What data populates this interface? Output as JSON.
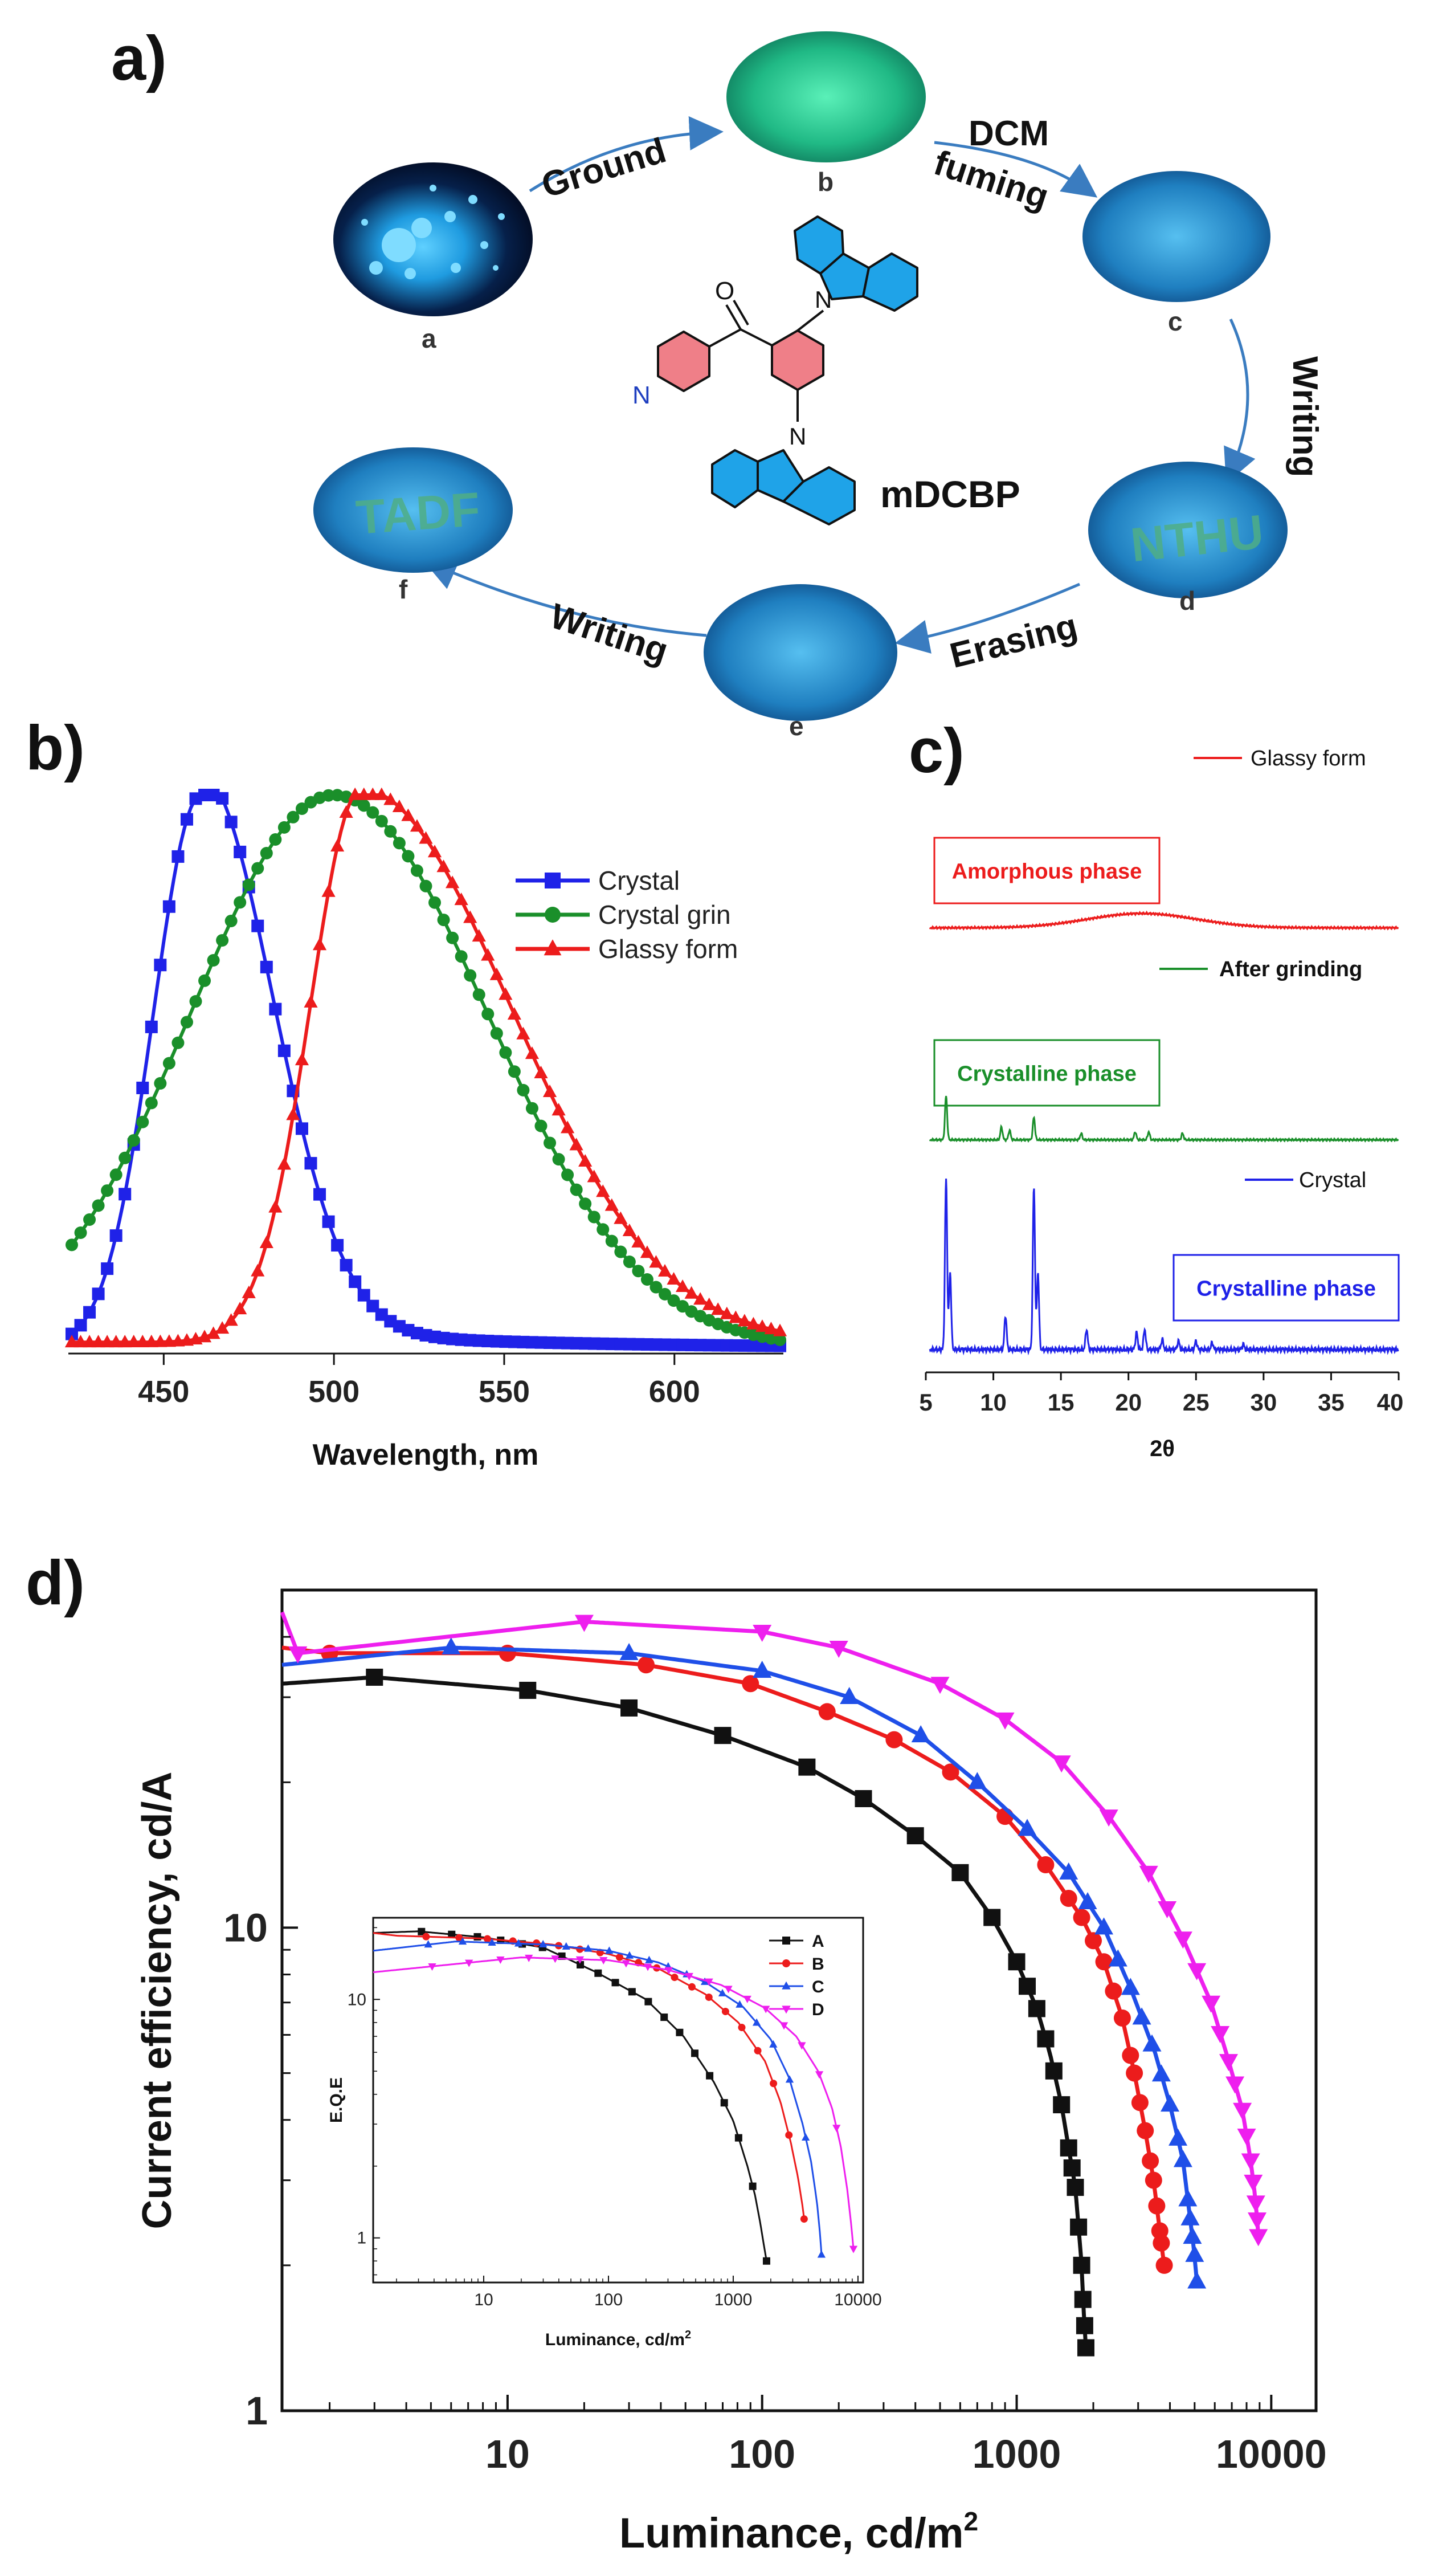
{
  "panel_labels": {
    "a": "a)",
    "b": "b)",
    "c": "c)",
    "d": "d)"
  },
  "panel_a": {
    "compound_name": "mDCBP",
    "samples": [
      {
        "letter": "a",
        "state": "crystal",
        "color": "#27a8e6"
      },
      {
        "letter": "b",
        "state": "ground",
        "color": "#33d39a"
      },
      {
        "letter": "c",
        "state": "fumed",
        "color": "#1b7fb7"
      },
      {
        "letter": "d",
        "state": "written",
        "color": "#2a88c0",
        "writing": "NTHU"
      },
      {
        "letter": "e",
        "state": "erased",
        "color": "#2a88c0"
      },
      {
        "letter": "f",
        "state": "rewritten",
        "color": "#2a88c0",
        "writing": "TADF"
      }
    ],
    "steps": {
      "ground": "Ground",
      "dcm": "DCM",
      "fuming": "fuming",
      "writing_right": "Writing",
      "erasing": "Erasing",
      "writing_left": "Writing"
    },
    "colors": {
      "arrow": "#3a7cc0",
      "carbazole": "#1fa3e8",
      "phenyl": "#ef7f88",
      "pyridine": "#ef7f88"
    }
  },
  "chart_data": [
    {
      "id": "b",
      "type": "line",
      "xlabel": "Wavelength, nm",
      "ylabel": "",
      "xlim": [
        422,
        632
      ],
      "ylim": [
        0,
        1.0
      ],
      "xticks": [
        450,
        500,
        550,
        600
      ],
      "xtick_labels": [
        "450",
        "500",
        "550",
        "600"
      ],
      "legend_position": "top-right",
      "series": [
        {
          "name": "Crystal",
          "color": "#1f22e8",
          "marker": "square",
          "peak": 461,
          "sigma_left": 14,
          "sigma_right": 21,
          "tail_amp": 0.04,
          "tail_width": 70
        },
        {
          "name": "Crystal grin",
          "color": "#1a8f2a",
          "marker": "circle",
          "peak": 500,
          "sigma_left": 42,
          "sigma_right": 45
        },
        {
          "name": "Glassy form",
          "color": "#ec1c1c",
          "marker": "triangle",
          "peak": 508,
          "sigma_left": 15,
          "sigma_right": 44,
          "baseline": 0.01
        }
      ]
    },
    {
      "id": "c",
      "type": "line",
      "xlabel": "2θ",
      "xlim": [
        5,
        40
      ],
      "xticks": [
        5,
        10,
        15,
        20,
        25,
        30,
        35,
        40
      ],
      "xtick_labels": [
        "5",
        "10",
        "15",
        "20",
        "25",
        "30",
        "35",
        "40"
      ],
      "series": [
        {
          "name": "Glassy form",
          "phase_label": "Amorphous phase",
          "color": "#ec1c1c",
          "hump_center": 21,
          "hump_height": 0.18,
          "hump_width": 4,
          "peaks": []
        },
        {
          "name": "After grinding",
          "phase_label": "Crystalline phase",
          "color": "#1a8f2a",
          "peaks": [
            [
              6.5,
              0.55
            ],
            [
              10.6,
              0.16
            ],
            [
              11.2,
              0.12
            ],
            [
              13.0,
              0.28
            ],
            [
              16.5,
              0.08
            ],
            [
              20.5,
              0.1
            ],
            [
              21.5,
              0.1
            ],
            [
              24.0,
              0.08
            ]
          ]
        },
        {
          "name": "Crystal",
          "phase_label": "Crystalline phase",
          "color": "#1f22e8",
          "peaks": [
            [
              6.5,
              1.0
            ],
            [
              6.8,
              0.45
            ],
            [
              10.9,
              0.2
            ],
            [
              13.0,
              0.95
            ],
            [
              13.3,
              0.45
            ],
            [
              16.9,
              0.12
            ],
            [
              20.6,
              0.1
            ],
            [
              21.2,
              0.12
            ],
            [
              22.5,
              0.06
            ],
            [
              23.7,
              0.05
            ],
            [
              25.0,
              0.05
            ],
            [
              26.2,
              0.04
            ],
            [
              28.5,
              0.03
            ]
          ]
        }
      ]
    },
    {
      "id": "d",
      "type": "line",
      "xlabel": "Luminance, cd/m",
      "xlabel_sup": "2",
      "ylabel": "Current efficiency, cd/A",
      "xscale": "log",
      "yscale": "log",
      "xlim": [
        1.3,
        15000
      ],
      "ylim": [
        1,
        50
      ],
      "xticks": [
        10,
        100,
        1000,
        10000
      ],
      "xtick_labels": [
        "10",
        "100",
        "1000",
        "10000"
      ],
      "yticks": [
        1,
        10
      ],
      "ytick_labels": [
        "1",
        "10"
      ],
      "series": [
        {
          "name": "A",
          "color": "#111111",
          "marker": "square",
          "points": [
            [
              1.3,
              32
            ],
            [
              3,
              33
            ],
            [
              12,
              31
            ],
            [
              30,
              28.5
            ],
            [
              70,
              25
            ],
            [
              150,
              21.5
            ],
            [
              250,
              18.5
            ],
            [
              400,
              15.5
            ],
            [
              600,
              13
            ],
            [
              800,
              10.5
            ],
            [
              1000,
              8.5
            ],
            [
              1200,
              6.8
            ],
            [
              1350,
              5.5
            ],
            [
              1500,
              4.3
            ],
            [
              1600,
              3.5
            ],
            [
              1700,
              2.9
            ],
            [
              1750,
              2.4
            ],
            [
              1800,
              2.0
            ],
            [
              1820,
              1.7
            ],
            [
              1850,
              1.5
            ],
            [
              1870,
              1.35
            ]
          ],
          "marker_x": [
            3,
            12,
            30,
            70,
            150,
            250,
            400,
            600,
            800,
            1000,
            1100,
            1200,
            1300,
            1400,
            1500,
            1600,
            1650,
            1700,
            1750,
            1800,
            1820,
            1850,
            1870
          ]
        },
        {
          "name": "B",
          "color": "#ec1c1c",
          "marker": "circle",
          "points": [
            [
              1.3,
              38
            ],
            [
              2,
              37
            ],
            [
              10,
              37
            ],
            [
              35,
              35
            ],
            [
              90,
              32
            ],
            [
              180,
              28
            ],
            [
              330,
              24.5
            ],
            [
              550,
              21
            ],
            [
              900,
              17
            ],
            [
              1300,
              13.5
            ],
            [
              1800,
              10.5
            ],
            [
              2200,
              8.5
            ],
            [
              2600,
              6.5
            ],
            [
              2900,
              5
            ],
            [
              3200,
              3.8
            ],
            [
              3450,
              3
            ],
            [
              3600,
              2.5
            ],
            [
              3750,
              2.1
            ],
            [
              3800,
              2.0
            ]
          ],
          "marker_x": [
            2,
            10,
            35,
            90,
            180,
            330,
            550,
            900,
            1300,
            1600,
            1800,
            2000,
            2200,
            2400,
            2600,
            2800,
            2900,
            3050,
            3200,
            3350,
            3450,
            3550,
            3650,
            3700,
            3800
          ]
        },
        {
          "name": "C",
          "color": "#1f4fe8",
          "marker": "triangle",
          "points": [
            [
              1.3,
              35
            ],
            [
              6,
              38
            ],
            [
              30,
              37
            ],
            [
              100,
              34
            ],
            [
              220,
              30
            ],
            [
              420,
              25
            ],
            [
              700,
              20
            ],
            [
              1100,
              16
            ],
            [
              1600,
              13
            ],
            [
              2200,
              10
            ],
            [
              2800,
              7.5
            ],
            [
              3500,
              5.5
            ],
            [
              4000,
              4.3
            ],
            [
              4500,
              3.3
            ],
            [
              4800,
              2.5
            ],
            [
              5000,
              2.1
            ],
            [
              5100,
              1.85
            ]
          ],
          "marker_x": [
            6,
            30,
            100,
            220,
            420,
            700,
            1100,
            1600,
            1900,
            2200,
            2500,
            2800,
            3100,
            3400,
            3700,
            4000,
            4300,
            4500,
            4700,
            4800,
            4900,
            5000,
            5100
          ]
        },
        {
          "name": "D",
          "color": "#ee1fee",
          "marker": "triangle-down",
          "points": [
            [
              1.3,
              45
            ],
            [
              1.5,
              37
            ],
            [
              20,
              43
            ],
            [
              100,
              41
            ],
            [
              200,
              38
            ],
            [
              500,
              32
            ],
            [
              900,
              27
            ],
            [
              1500,
              22
            ],
            [
              2300,
              17
            ],
            [
              3300,
              13
            ],
            [
              4500,
              9.5
            ],
            [
              5800,
              7
            ],
            [
              6800,
              5.3
            ],
            [
              7700,
              4.2
            ],
            [
              8300,
              3.3
            ],
            [
              8700,
              2.7
            ],
            [
              8900,
              2.3
            ]
          ],
          "marker_x": [
            1.5,
            20,
            100,
            200,
            500,
            900,
            1500,
            2300,
            3300,
            3900,
            4500,
            5100,
            5800,
            6300,
            6800,
            7200,
            7700,
            8000,
            8300,
            8500,
            8700,
            8800,
            8900
          ]
        }
      ]
    },
    {
      "id": "d_inset",
      "type": "line",
      "xlabel": "Luminance, cd/m",
      "xlabel_sup": "2",
      "ylabel": "E.Q.E",
      "xscale": "log",
      "yscale": "log",
      "xlim": [
        1.3,
        11000
      ],
      "ylim": [
        0.65,
        22
      ],
      "xticks": [
        10,
        100,
        1000,
        10000
      ],
      "xtick_labels": [
        "10",
        "100",
        "1000",
        "10000"
      ],
      "yticks": [
        1,
        10
      ],
      "ytick_labels": [
        "1",
        "10"
      ],
      "legend_position": "top-right",
      "series": [
        {
          "name": "A",
          "color": "#111111",
          "marker": "square",
          "points": [
            [
              1.3,
              19
            ],
            [
              3,
              19.3
            ],
            [
              10,
              18.2
            ],
            [
              30,
              16.5
            ],
            [
              80,
              13
            ],
            [
              200,
              10
            ],
            [
              400,
              7
            ],
            [
              700,
              4.5
            ],
            [
              1000,
              3.1
            ],
            [
              1300,
              2
            ],
            [
              1500,
              1.5
            ],
            [
              1650,
              1.15
            ],
            [
              1750,
              0.95
            ],
            [
              1850,
              0.8
            ]
          ]
        },
        {
          "name": "B",
          "color": "#ec1c1c",
          "marker": "circle",
          "points": [
            [
              1.3,
              19
            ],
            [
              2,
              18.5
            ],
            [
              10,
              18
            ],
            [
              35,
              17
            ],
            [
              100,
              15.5
            ],
            [
              250,
              13.5
            ],
            [
              600,
              10.5
            ],
            [
              1100,
              8
            ],
            [
              1800,
              5.5
            ],
            [
              2400,
              3.7
            ],
            [
              2900,
              2.5
            ],
            [
              3300,
              1.8
            ],
            [
              3600,
              1.35
            ],
            [
              3700,
              1.2
            ]
          ]
        },
        {
          "name": "C",
          "color": "#1f4fe8",
          "marker": "triangle",
          "points": [
            [
              1.3,
              16
            ],
            [
              6,
              17.5
            ],
            [
              30,
              17
            ],
            [
              100,
              16
            ],
            [
              250,
              14.3
            ],
            [
              600,
              11.8
            ],
            [
              1200,
              9.3
            ],
            [
              2000,
              6.8
            ],
            [
              2800,
              4.7
            ],
            [
              3600,
              3
            ],
            [
              4200,
              2.1
            ],
            [
              4700,
              1.4
            ],
            [
              5000,
              1.0
            ],
            [
              5100,
              0.85
            ]
          ]
        },
        {
          "name": "D",
          "color": "#ee1fee",
          "marker": "triangle-down",
          "points": [
            [
              1.3,
              13
            ],
            [
              20,
              15
            ],
            [
              100,
              14.6
            ],
            [
              300,
              13.3
            ],
            [
              800,
              11.5
            ],
            [
              1800,
              9.2
            ],
            [
              3200,
              7
            ],
            [
              4800,
              5
            ],
            [
              6200,
              3.5
            ],
            [
              7300,
              2.4
            ],
            [
              8200,
              1.6
            ],
            [
              8800,
              1.15
            ],
            [
              9200,
              0.9
            ]
          ]
        }
      ]
    }
  ]
}
